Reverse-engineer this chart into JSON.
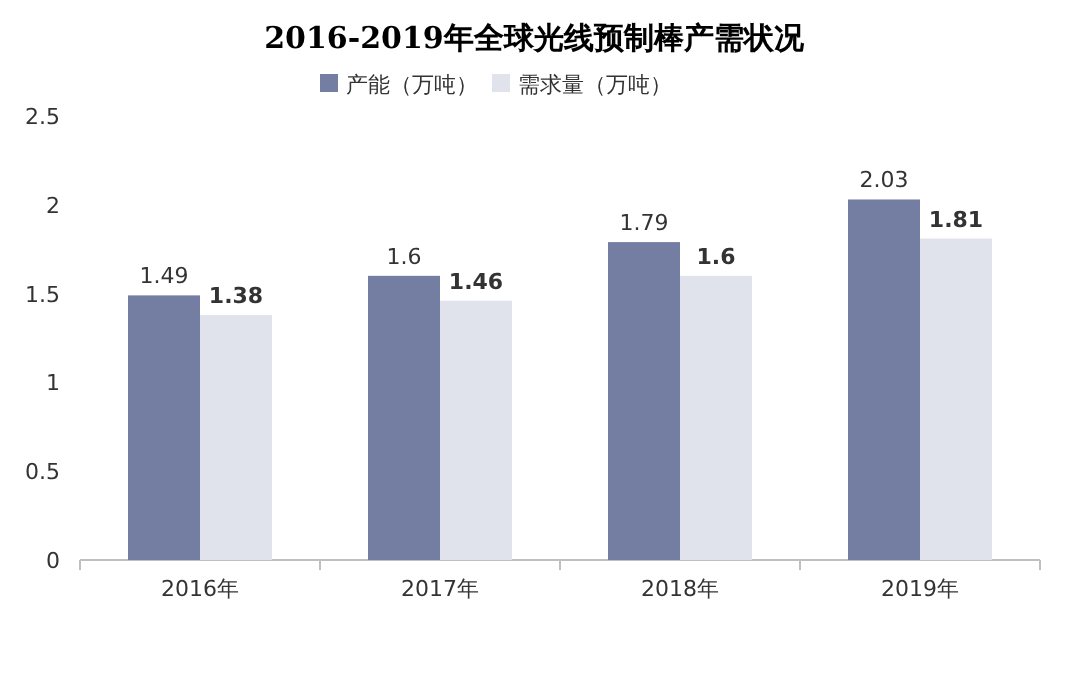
{
  "chart_data": {
    "type": "bar",
    "title": "2016-2019年全球光线预制棒产需状况",
    "categories": [
      "2016年",
      "2017年",
      "2018年",
      "2019年"
    ],
    "series": [
      {
        "name": "产能（万吨）",
        "color": "#747ea3",
        "values": [
          1.49,
          1.6,
          1.79,
          2.03
        ]
      },
      {
        "name": "需求量（万吨）",
        "color": "#e1e3ec",
        "values": [
          1.38,
          1.46,
          1.6,
          1.81
        ]
      }
    ],
    "ylim": [
      0,
      2.5
    ],
    "yticks": [
      0,
      0.5,
      1,
      1.5,
      2,
      2.5
    ],
    "data_labels": true,
    "legend": "top",
    "grid": false
  }
}
